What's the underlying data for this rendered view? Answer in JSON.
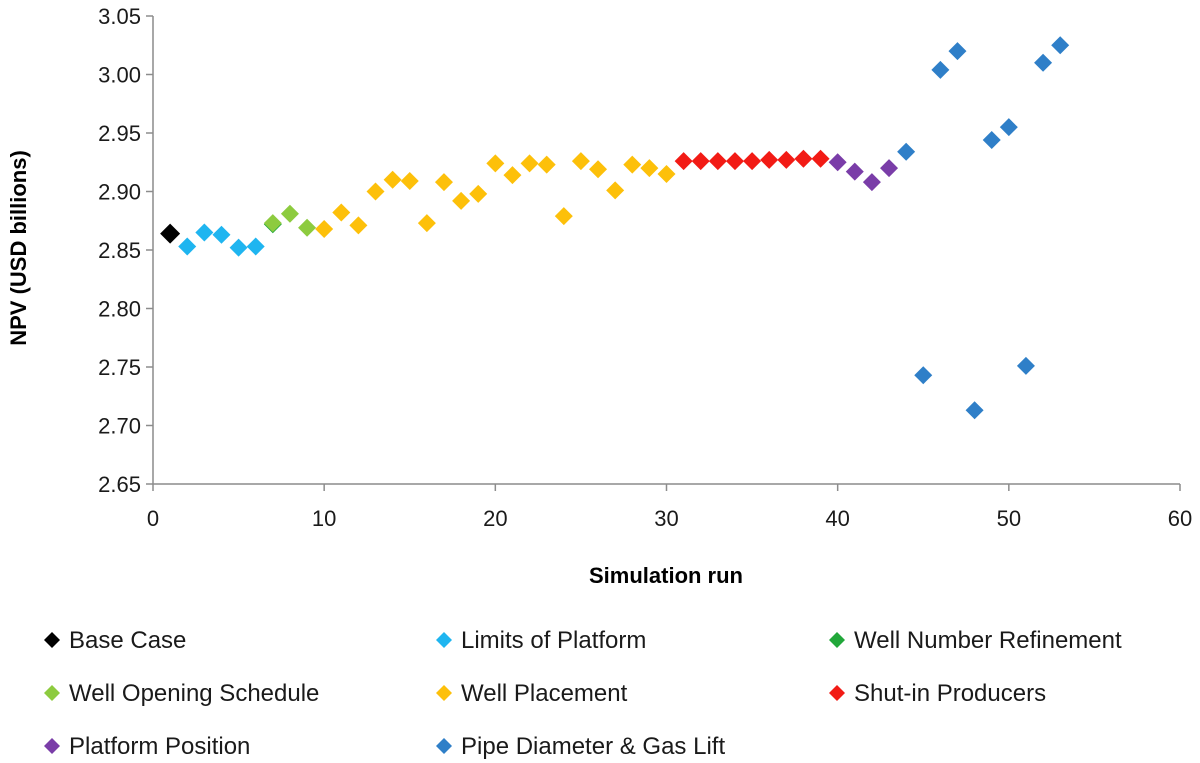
{
  "chart_data": {
    "type": "scatter",
    "title": "",
    "xlabel": "Simulation run",
    "ylabel": "NPV (USD billions)",
    "xlim": [
      0,
      60
    ],
    "ylim": [
      2.65,
      3.05
    ],
    "xticks": [
      "0",
      "10",
      "20",
      "30",
      "40",
      "50",
      "60"
    ],
    "yticks": [
      "2.65",
      "2.70",
      "2.75",
      "2.80",
      "2.85",
      "2.90",
      "2.95",
      "3.00",
      "3.05"
    ],
    "grid": false,
    "legend_position": "bottom",
    "series": [
      {
        "name": "Base Case",
        "color": "#000000",
        "marker": "diamond",
        "points": [
          [
            1,
            2.864
          ]
        ]
      },
      {
        "name": "Limits of Platform",
        "color": "#1FB5F0",
        "marker": "diamond",
        "points": [
          [
            2,
            2.853
          ],
          [
            3,
            2.865
          ],
          [
            4,
            2.863
          ],
          [
            5,
            2.852
          ],
          [
            6,
            2.853
          ]
        ]
      },
      {
        "name": "Well Number Refinement",
        "color": "#21A73A",
        "marker": "diamond",
        "points": [
          [
            7,
            2.872
          ]
        ]
      },
      {
        "name": "Well Opening Schedule",
        "color": "#8DCB3F",
        "marker": "diamond",
        "points": [
          [
            7,
            2.873
          ],
          [
            8,
            2.881
          ],
          [
            9,
            2.869
          ]
        ]
      },
      {
        "name": "Well Placement",
        "color": "#FDC00A",
        "marker": "diamond",
        "points": [
          [
            10,
            2.868
          ],
          [
            11,
            2.882
          ],
          [
            12,
            2.871
          ],
          [
            13,
            2.9
          ],
          [
            14,
            2.91
          ],
          [
            15,
            2.909
          ],
          [
            16,
            2.873
          ],
          [
            17,
            2.908
          ],
          [
            18,
            2.892
          ],
          [
            19,
            2.898
          ],
          [
            20,
            2.924
          ],
          [
            21,
            2.914
          ],
          [
            22,
            2.924
          ],
          [
            23,
            2.923
          ],
          [
            24,
            2.879
          ],
          [
            25,
            2.926
          ],
          [
            26,
            2.919
          ],
          [
            27,
            2.901
          ],
          [
            28,
            2.923
          ],
          [
            29,
            2.92
          ],
          [
            30,
            2.915
          ]
        ]
      },
      {
        "name": "Shut-in Producers",
        "color": "#F21B15",
        "marker": "diamond",
        "points": [
          [
            31,
            2.926
          ],
          [
            32,
            2.926
          ],
          [
            33,
            2.926
          ],
          [
            34,
            2.926
          ],
          [
            35,
            2.926
          ],
          [
            36,
            2.927
          ],
          [
            37,
            2.927
          ],
          [
            38,
            2.928
          ],
          [
            39,
            2.928
          ]
        ]
      },
      {
        "name": "Platform Position",
        "color": "#7A3DA8",
        "marker": "diamond",
        "points": [
          [
            40,
            2.925
          ],
          [
            41,
            2.917
          ],
          [
            42,
            2.908
          ],
          [
            43,
            2.92
          ]
        ]
      },
      {
        "name": "Pipe Diameter & Gas Lift",
        "color": "#2F7FC8",
        "marker": "diamond",
        "points": [
          [
            44,
            2.934
          ],
          [
            45,
            2.743
          ],
          [
            46,
            3.004
          ],
          [
            47,
            3.02
          ],
          [
            48,
            2.713
          ],
          [
            49,
            2.944
          ],
          [
            50,
            2.955
          ],
          [
            51,
            2.751
          ],
          [
            52,
            3.01
          ],
          [
            53,
            3.025
          ]
        ]
      }
    ]
  }
}
